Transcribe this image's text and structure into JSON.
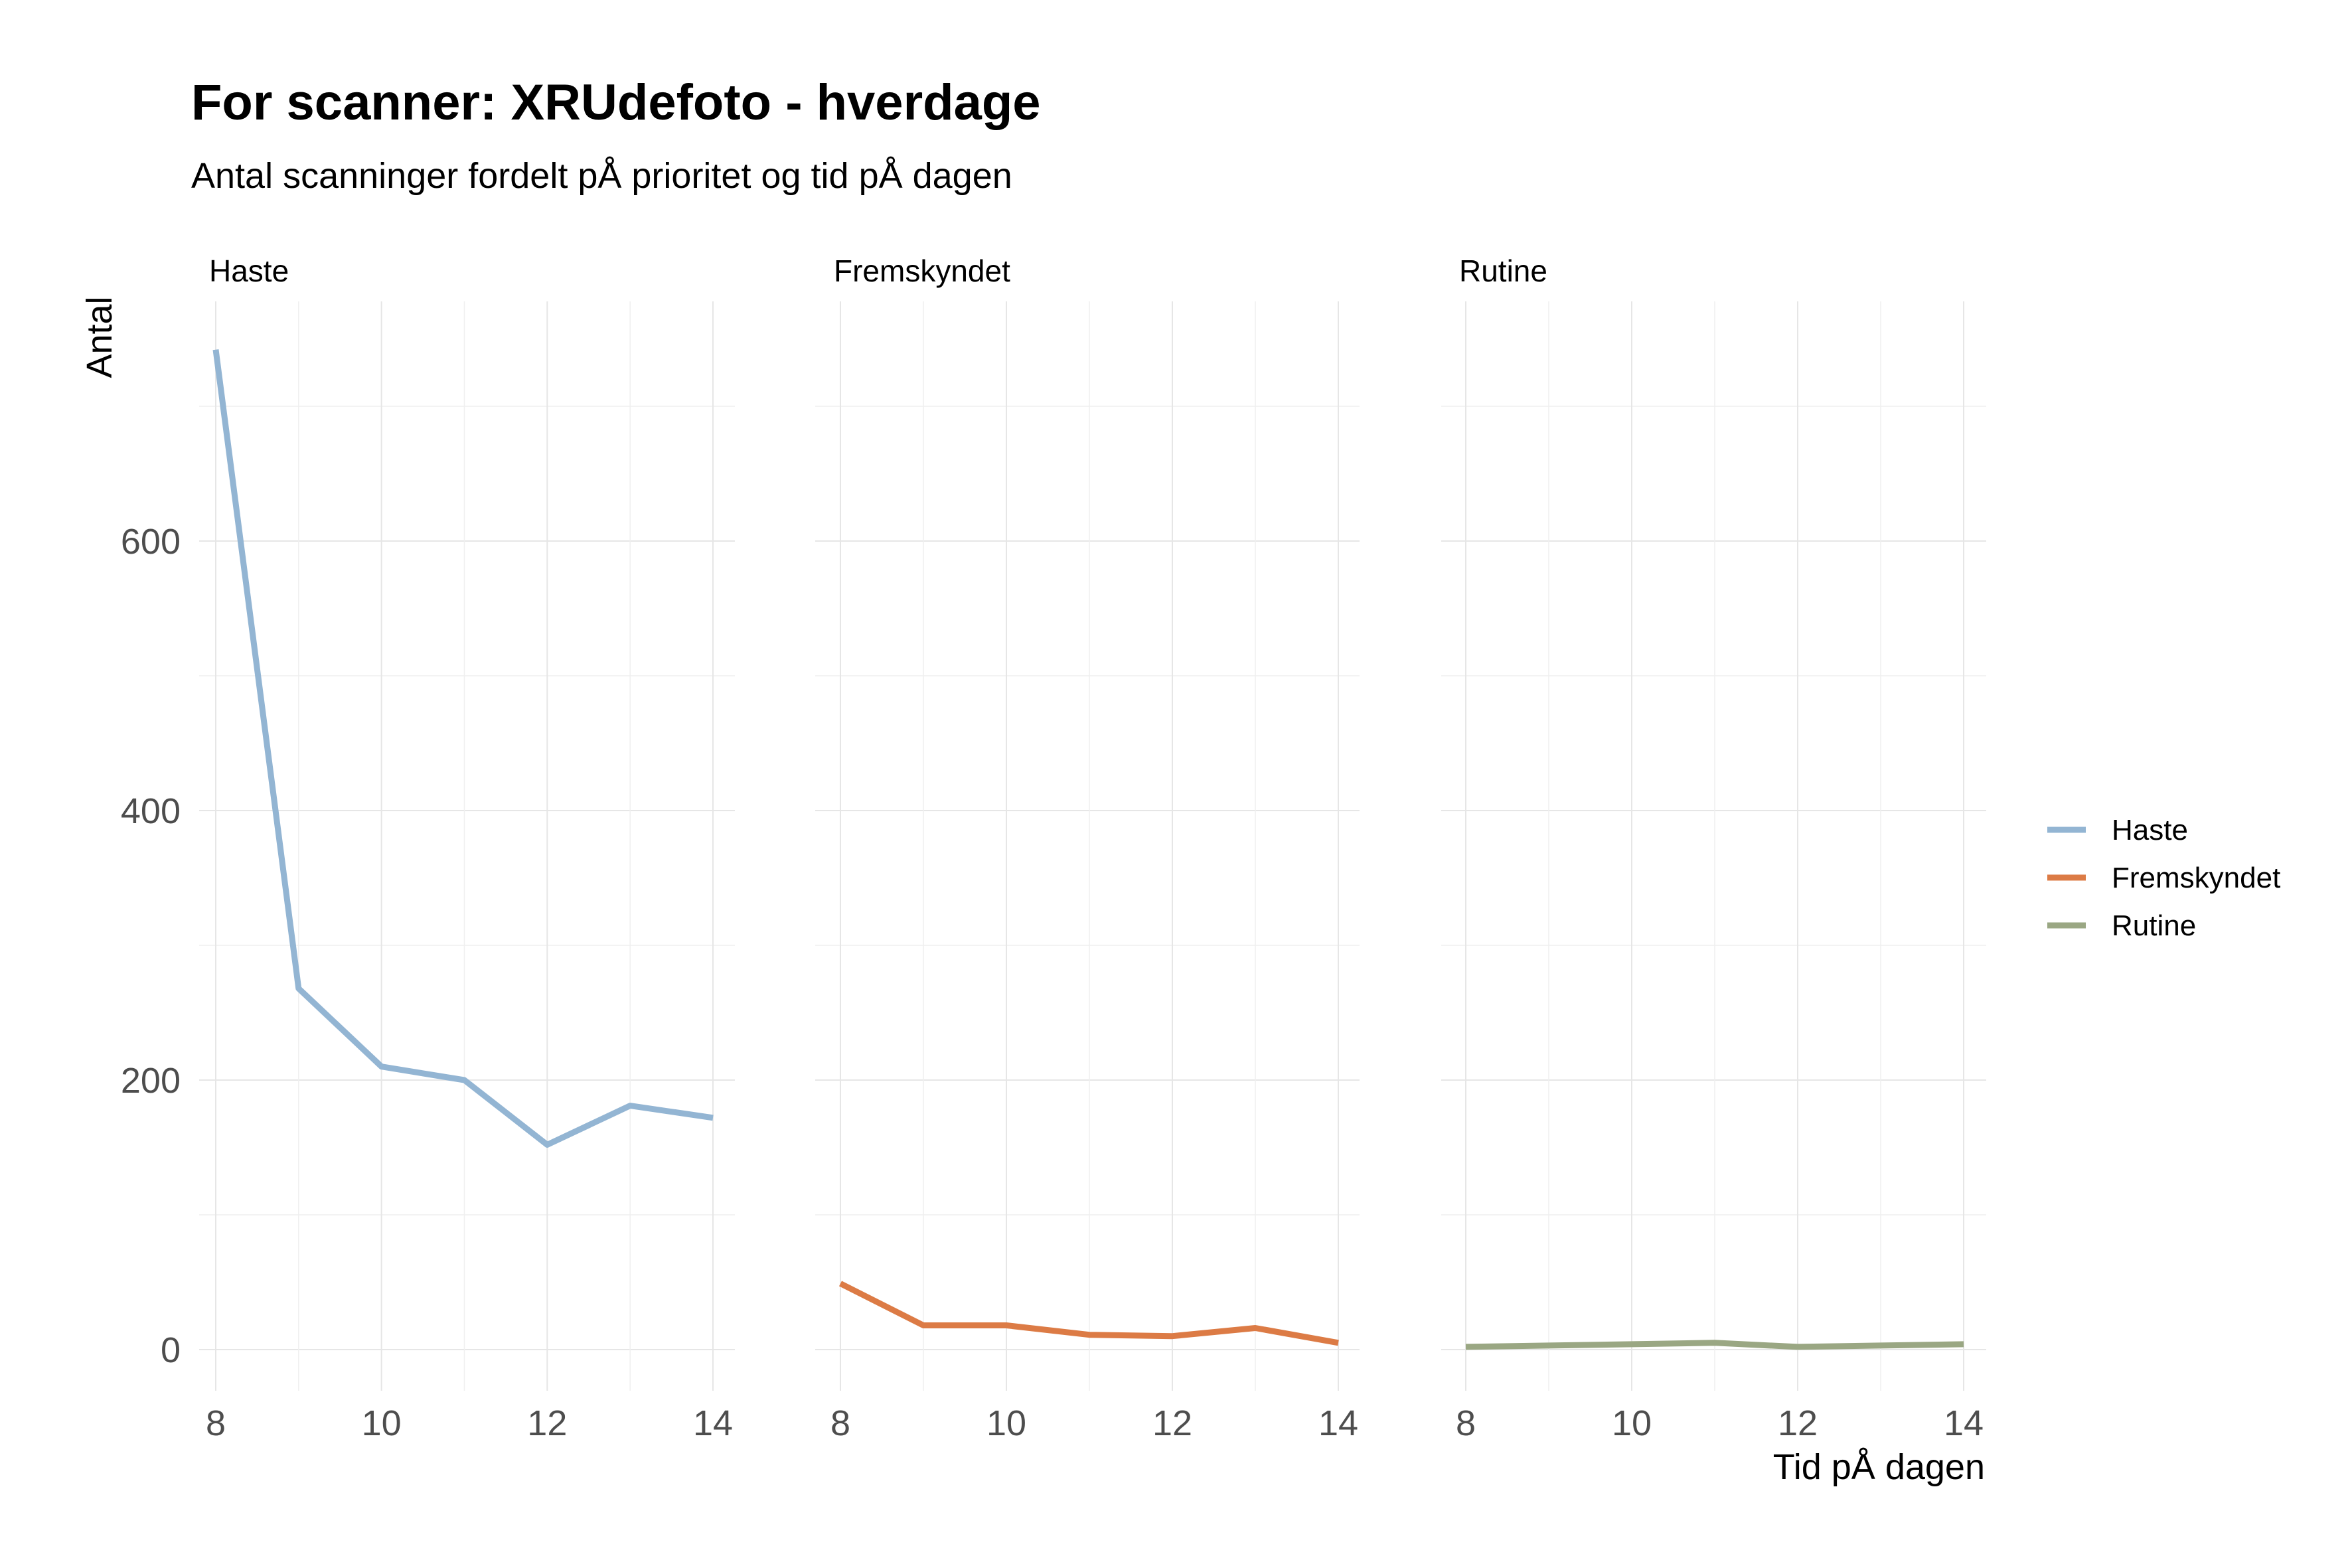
{
  "chart_data": {
    "type": "line",
    "title": "For scanner: XRUdefoto - hverdage",
    "subtitle": "Antal scanninger fordelt pÅ prioritet og tid pÅ dagen",
    "xlabel": "Tid pÅ dagen",
    "ylabel": "Antal",
    "x": [
      8,
      9,
      10,
      11,
      12,
      13,
      14
    ],
    "x_ticks": [
      "8",
      "10",
      "12",
      "14"
    ],
    "y_ticks": [
      "0",
      "200",
      "400",
      "600"
    ],
    "xlim": [
      8,
      14
    ],
    "ylim": [
      0,
      740
    ],
    "grid": true,
    "legend_position": "right",
    "facets": [
      {
        "strip": "Haste",
        "series": "Haste"
      },
      {
        "strip": "Fremskyndet",
        "series": "Fremskyndet"
      },
      {
        "strip": "Rutine",
        "series": "Rutine"
      }
    ],
    "series": [
      {
        "name": "Haste",
        "color": "#93b5d3",
        "values": [
          742,
          268,
          210,
          200,
          152,
          181,
          172
        ]
      },
      {
        "name": "Fremskyndet",
        "color": "#dc7b45",
        "values": [
          49,
          18,
          18,
          11,
          10,
          16,
          5
        ]
      },
      {
        "name": "Rutine",
        "color": "#9aa783",
        "values": [
          2,
          3,
          4,
          5,
          2,
          3,
          4
        ]
      }
    ]
  }
}
